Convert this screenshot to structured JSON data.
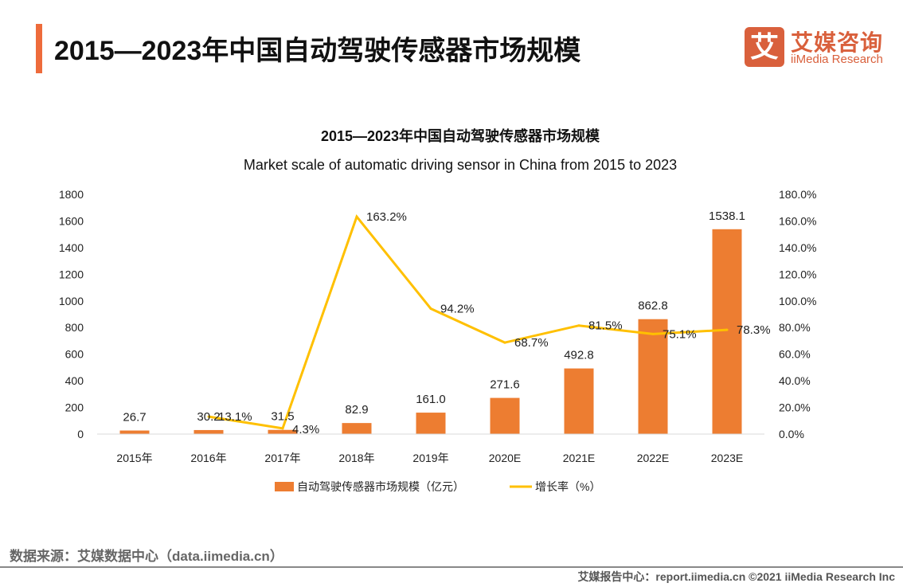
{
  "header": {
    "title": "2015—2023年中国自动驾驶传感器市场规模"
  },
  "logo": {
    "mark": "艾",
    "cn": "艾媒咨询",
    "en": "iiMedia Research"
  },
  "footer": {
    "source": "数据来源：艾媒数据中心（data.iimedia.cn）",
    "copyright": "艾媒报告中心：report.iimedia.cn   ©2021  iiMedia Research  Inc"
  },
  "colors": {
    "bar": "#ed7d31",
    "line": "#ffc000",
    "accent": "#ee6b3b"
  },
  "chart_data": {
    "type": "bar+line",
    "title": "2015—2023年中国自动驾驶传感器市场规模",
    "subtitle": "Market scale of automatic driving sensor in China from 2015 to 2023",
    "categories": [
      "2015年",
      "2016年",
      "2017年",
      "2018年",
      "2019年",
      "2020E",
      "2021E",
      "2022E",
      "2023E"
    ],
    "series": [
      {
        "name": "自动驾驶传感器市场规模（亿元）",
        "type": "bar",
        "axis": "left",
        "values": [
          26.7,
          30.2,
          31.5,
          82.9,
          161.0,
          271.6,
          492.8,
          862.8,
          1538.1
        ],
        "labels": [
          "26.7",
          "30.2",
          "31.5",
          "82.9",
          "161.0",
          "271.6",
          "492.8",
          "862.8",
          "1538.1"
        ]
      },
      {
        "name": "增长率（%）",
        "type": "line",
        "axis": "right",
        "values": [
          null,
          13.1,
          4.3,
          163.2,
          94.2,
          68.7,
          81.5,
          75.1,
          78.3
        ],
        "labels": [
          "",
          "13.1%",
          "4.3%",
          "163.2%",
          "94.2%",
          "68.7%",
          "81.5%",
          "75.1%",
          "78.3%"
        ]
      }
    ],
    "y_left": {
      "min": 0,
      "max": 1800,
      "ticks": [
        "0",
        "200",
        "400",
        "600",
        "800",
        "1000",
        "1200",
        "1400",
        "1600",
        "1800"
      ]
    },
    "y_right": {
      "min": 0,
      "max": 180,
      "ticks": [
        "0.0%",
        "20.0%",
        "40.0%",
        "60.0%",
        "80.0%",
        "100.0%",
        "120.0%",
        "140.0%",
        "160.0%",
        "180.0%"
      ]
    },
    "grid": false,
    "legend": "bottom"
  }
}
